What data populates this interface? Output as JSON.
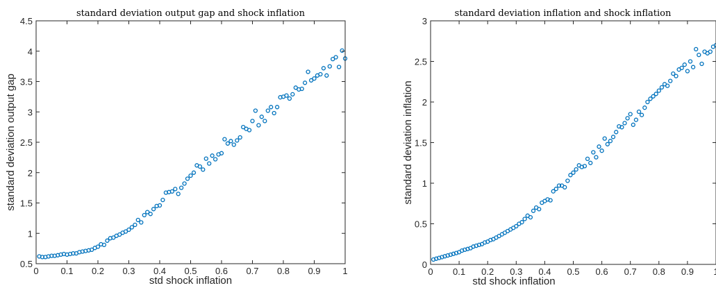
{
  "chart_data": [
    {
      "type": "scatter",
      "title": "standard deviation output gap and shock inflation",
      "xlabel": "std shock inflation",
      "ylabel": "standard deviation output gap",
      "xlim": [
        0,
        1
      ],
      "ylim": [
        0.5,
        4.5
      ],
      "xticks": [
        "0",
        "0.1",
        "0.2",
        "0.3",
        "0.4",
        "0.5",
        "0.6",
        "0.7",
        "0.8",
        "0.9",
        "1"
      ],
      "yticks": [
        "0.5",
        "1",
        "1.5",
        "2",
        "2.5",
        "3",
        "3.5",
        "4",
        "4.5"
      ],
      "grid": false,
      "marker": "circle",
      "color": "#0072BD",
      "x": [
        0.01,
        0.02,
        0.03,
        0.04,
        0.05,
        0.06,
        0.07,
        0.08,
        0.09,
        0.1,
        0.11,
        0.12,
        0.13,
        0.14,
        0.15,
        0.16,
        0.17,
        0.18,
        0.19,
        0.2,
        0.21,
        0.22,
        0.23,
        0.24,
        0.25,
        0.26,
        0.27,
        0.28,
        0.29,
        0.3,
        0.31,
        0.32,
        0.33,
        0.34,
        0.35,
        0.36,
        0.37,
        0.38,
        0.39,
        0.4,
        0.41,
        0.42,
        0.43,
        0.44,
        0.45,
        0.46,
        0.47,
        0.48,
        0.49,
        0.5,
        0.51,
        0.52,
        0.53,
        0.54,
        0.55,
        0.56,
        0.57,
        0.58,
        0.59,
        0.6,
        0.61,
        0.62,
        0.63,
        0.64,
        0.65,
        0.66,
        0.67,
        0.68,
        0.69,
        0.7,
        0.71,
        0.72,
        0.73,
        0.74,
        0.75,
        0.76,
        0.77,
        0.78,
        0.79,
        0.8,
        0.81,
        0.82,
        0.83,
        0.84,
        0.85,
        0.86,
        0.87,
        0.88,
        0.89,
        0.9,
        0.91,
        0.92,
        0.93,
        0.94,
        0.95,
        0.96,
        0.97,
        0.98,
        0.99,
        1.0
      ],
      "y": [
        0.62,
        0.61,
        0.61,
        0.62,
        0.63,
        0.63,
        0.64,
        0.65,
        0.66,
        0.65,
        0.66,
        0.67,
        0.67,
        0.69,
        0.7,
        0.71,
        0.72,
        0.73,
        0.76,
        0.78,
        0.82,
        0.81,
        0.88,
        0.92,
        0.93,
        0.96,
        0.98,
        1.01,
        1.03,
        1.06,
        1.1,
        1.14,
        1.22,
        1.18,
        1.3,
        1.35,
        1.32,
        1.4,
        1.45,
        1.46,
        1.55,
        1.67,
        1.68,
        1.69,
        1.73,
        1.65,
        1.75,
        1.82,
        1.9,
        1.95,
        2.0,
        2.12,
        2.1,
        2.05,
        2.23,
        2.15,
        2.28,
        2.22,
        2.3,
        2.32,
        2.55,
        2.48,
        2.52,
        2.46,
        2.53,
        2.58,
        2.75,
        2.72,
        2.7,
        2.85,
        3.02,
        2.78,
        2.92,
        2.85,
        3.02,
        3.08,
        2.98,
        3.08,
        3.24,
        3.25,
        3.27,
        3.22,
        3.29,
        3.4,
        3.37,
        3.38,
        3.48,
        3.66,
        3.52,
        3.55,
        3.6,
        3.62,
        3.72,
        3.6,
        3.75,
        3.87,
        3.9,
        3.74,
        4.01,
        3.88
      ]
    },
    {
      "type": "scatter",
      "title": "standard deviation inflation and shock inflation",
      "xlabel": "std shock inflation",
      "ylabel": "standard deviation inflation",
      "xlim": [
        0,
        1
      ],
      "ylim": [
        0,
        3
      ],
      "xticks": [
        "0",
        "0.1",
        "0.2",
        "0.3",
        "0.4",
        "0.5",
        "0.6",
        "0.7",
        "0.8",
        "0.9",
        "1"
      ],
      "yticks": [
        "0",
        "0.5",
        "1",
        "1.5",
        "2",
        "2.5",
        "3"
      ],
      "grid": false,
      "marker": "circle",
      "color": "#0072BD",
      "x": [
        0.01,
        0.02,
        0.03,
        0.04,
        0.05,
        0.06,
        0.07,
        0.08,
        0.09,
        0.1,
        0.11,
        0.12,
        0.13,
        0.14,
        0.15,
        0.16,
        0.17,
        0.18,
        0.19,
        0.2,
        0.21,
        0.22,
        0.23,
        0.24,
        0.25,
        0.26,
        0.27,
        0.28,
        0.29,
        0.3,
        0.31,
        0.32,
        0.33,
        0.34,
        0.35,
        0.36,
        0.37,
        0.38,
        0.39,
        0.4,
        0.41,
        0.42,
        0.43,
        0.44,
        0.45,
        0.46,
        0.47,
        0.48,
        0.49,
        0.5,
        0.51,
        0.52,
        0.53,
        0.54,
        0.55,
        0.56,
        0.57,
        0.58,
        0.59,
        0.6,
        0.61,
        0.62,
        0.63,
        0.64,
        0.65,
        0.66,
        0.67,
        0.68,
        0.69,
        0.7,
        0.71,
        0.72,
        0.73,
        0.74,
        0.75,
        0.76,
        0.77,
        0.78,
        0.79,
        0.8,
        0.81,
        0.82,
        0.83,
        0.84,
        0.85,
        0.86,
        0.87,
        0.88,
        0.89,
        0.9,
        0.91,
        0.92,
        0.93,
        0.94,
        0.95,
        0.96,
        0.97,
        0.98,
        0.99,
        1.0
      ],
      "y": [
        0.06,
        0.07,
        0.08,
        0.09,
        0.1,
        0.11,
        0.12,
        0.13,
        0.14,
        0.15,
        0.17,
        0.18,
        0.19,
        0.2,
        0.22,
        0.23,
        0.24,
        0.25,
        0.27,
        0.28,
        0.3,
        0.31,
        0.33,
        0.35,
        0.37,
        0.39,
        0.41,
        0.43,
        0.45,
        0.47,
        0.5,
        0.52,
        0.56,
        0.6,
        0.58,
        0.66,
        0.7,
        0.68,
        0.76,
        0.78,
        0.8,
        0.79,
        0.9,
        0.93,
        0.97,
        0.97,
        0.95,
        1.03,
        1.1,
        1.13,
        1.17,
        1.22,
        1.2,
        1.21,
        1.3,
        1.25,
        1.38,
        1.32,
        1.45,
        1.4,
        1.55,
        1.48,
        1.52,
        1.57,
        1.63,
        1.7,
        1.69,
        1.74,
        1.8,
        1.85,
        1.72,
        1.78,
        1.88,
        1.84,
        1.93,
        2.0,
        2.04,
        2.07,
        2.1,
        2.14,
        2.18,
        2.22,
        2.2,
        2.26,
        2.35,
        2.32,
        2.4,
        2.42,
        2.46,
        2.38,
        2.5,
        2.43,
        2.65,
        2.58,
        2.47,
        2.62,
        2.6,
        2.62,
        2.68,
        2.7
      ]
    }
  ]
}
